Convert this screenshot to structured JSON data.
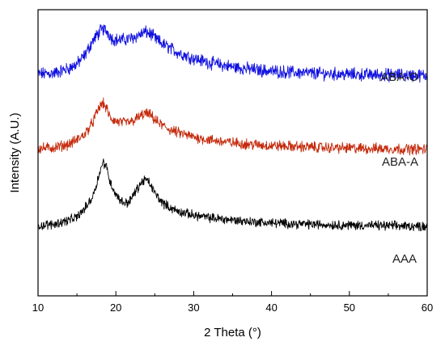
{
  "chart_data": {
    "type": "line",
    "title": "",
    "xlabel": "2 Theta (°)",
    "ylabel": "Intensity (A.U.)",
    "xlim": [
      10,
      60
    ],
    "ylim": [
      0,
      100
    ],
    "x_ticks": [
      "10",
      "20",
      "30",
      "40",
      "50",
      "60"
    ],
    "y_ticks_shown": false,
    "grid": false,
    "legend": "inline labels at right",
    "series": [
      {
        "name": "ABA-O",
        "color": "#1010e0",
        "noise": 1.8,
        "x": [
          10,
          12,
          14,
          15,
          16,
          17,
          18,
          18.5,
          19,
          19.5,
          20,
          21,
          22,
          23,
          23.8,
          24.5,
          25,
          26,
          27,
          28,
          30,
          32,
          35,
          38,
          40,
          45,
          50,
          55,
          60
        ],
        "y": [
          77.5,
          77.8,
          79.5,
          81,
          84,
          89,
          92.5,
          93.2,
          92,
          90,
          89.5,
          89.5,
          90,
          91.2,
          92.2,
          91.5,
          90,
          88,
          86.5,
          85,
          83,
          81.5,
          80,
          79,
          78.5,
          77.8,
          77.4,
          77.2,
          77
        ]
      },
      {
        "name": "ABA-A",
        "color": "#c42a0c",
        "noise": 1.5,
        "x": [
          10,
          12,
          14,
          15,
          16,
          17,
          17.8,
          18.3,
          18.8,
          19.3,
          20,
          21,
          22,
          23,
          23.8,
          24.5,
          25.2,
          26,
          27,
          28,
          30,
          32,
          35,
          38,
          40,
          45,
          50,
          55,
          60
        ],
        "y": [
          51.5,
          51.8,
          53,
          54.5,
          56.5,
          60.5,
          65.5,
          67.5,
          65.5,
          62,
          61,
          60.5,
          60.8,
          62.5,
          63.8,
          63,
          61,
          59.5,
          58,
          57,
          55.5,
          54.5,
          53.5,
          52.8,
          52.5,
          52,
          51.6,
          51.4,
          51.2
        ]
      },
      {
        "name": "AAA",
        "color": "#000000",
        "noise": 1.3,
        "x": [
          10,
          12,
          14,
          15,
          16,
          17,
          17.5,
          18,
          18.4,
          18.8,
          19.3,
          20,
          20.8,
          21.5,
          22,
          23,
          23.7,
          24.3,
          25,
          26,
          27,
          28,
          30,
          32,
          35,
          38,
          40,
          45,
          50,
          55,
          60
        ],
        "y": [
          24.5,
          25,
          26.5,
          27.5,
          30.5,
          34.5,
          39,
          44,
          46.8,
          45,
          39.5,
          35.5,
          32.8,
          32.5,
          34,
          38.5,
          40.8,
          39.5,
          36,
          32.5,
          30.8,
          29.5,
          28.2,
          27.3,
          26.5,
          25.8,
          25.5,
          25,
          24.7,
          24.5,
          24.3
        ]
      }
    ]
  }
}
